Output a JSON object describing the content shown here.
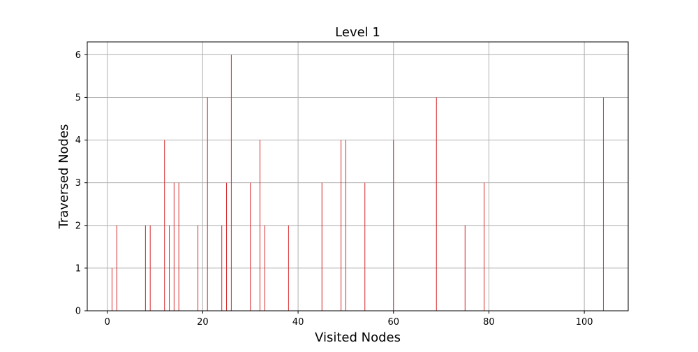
{
  "chart_data": {
    "type": "bar",
    "title": "Level 1",
    "xlabel": "Visited Nodes",
    "ylabel": "Traversed Nodes",
    "xlim": [
      -4.2,
      109.2
    ],
    "ylim": [
      0,
      6.3
    ],
    "xticks": [
      0,
      20,
      40,
      60,
      80,
      100
    ],
    "yticks": [
      0,
      1,
      2,
      3,
      4,
      5,
      6
    ],
    "grid": true,
    "bar_color": "#d62728",
    "points": [
      {
        "x": 1,
        "y": 1
      },
      {
        "x": 2,
        "y": 2
      },
      {
        "x": 8,
        "y": 2
      },
      {
        "x": 9,
        "y": 2
      },
      {
        "x": 12,
        "y": 4
      },
      {
        "x": 13,
        "y": 2
      },
      {
        "x": 14,
        "y": 3
      },
      {
        "x": 15,
        "y": 3
      },
      {
        "x": 19,
        "y": 2
      },
      {
        "x": 21,
        "y": 5
      },
      {
        "x": 24,
        "y": 2
      },
      {
        "x": 25,
        "y": 3
      },
      {
        "x": 26,
        "y": 6
      },
      {
        "x": 30,
        "y": 3
      },
      {
        "x": 32,
        "y": 4
      },
      {
        "x": 33,
        "y": 2
      },
      {
        "x": 38,
        "y": 2
      },
      {
        "x": 45,
        "y": 3
      },
      {
        "x": 49,
        "y": 4
      },
      {
        "x": 50,
        "y": 4
      },
      {
        "x": 54,
        "y": 3
      },
      {
        "x": 60,
        "y": 4
      },
      {
        "x": 69,
        "y": 5
      },
      {
        "x": 75,
        "y": 2
      },
      {
        "x": 79,
        "y": 3
      },
      {
        "x": 104,
        "y": 5
      }
    ]
  }
}
